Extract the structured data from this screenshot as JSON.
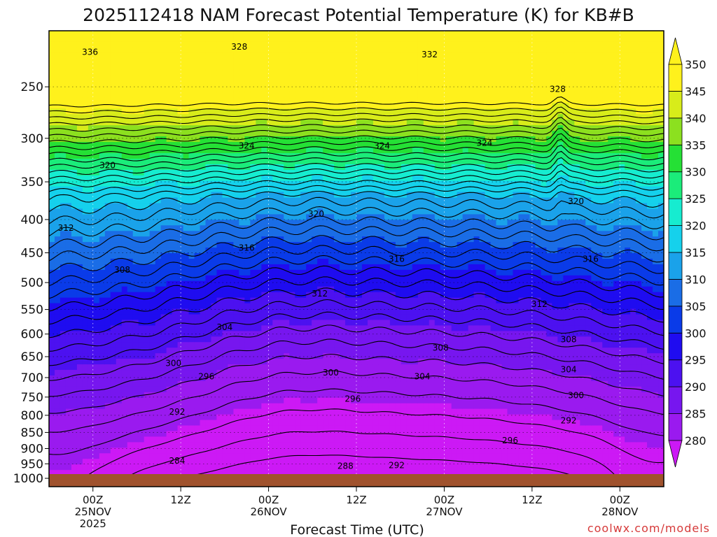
{
  "chart_data": {
    "type": "heatmap",
    "title": "2025112418 NAM Forecast Potential Temperature (K) for KB#B",
    "xlabel": "Forecast Time (UTC)",
    "watermark": "coolwx.com/models",
    "x_ticks": [
      {
        "hour": 6,
        "label": "00Z",
        "sub": [
          "25NOV",
          "2025"
        ]
      },
      {
        "hour": 18,
        "label": "12Z",
        "sub": []
      },
      {
        "hour": 30,
        "label": "00Z",
        "sub": [
          "26NOV"
        ]
      },
      {
        "hour": 42,
        "label": "12Z",
        "sub": []
      },
      {
        "hour": 54,
        "label": "00Z",
        "sub": [
          "27NOV"
        ]
      },
      {
        "hour": 66,
        "label": "12Z",
        "sub": []
      },
      {
        "hour": 78,
        "label": "00Z",
        "sub": [
          "28NOV"
        ]
      }
    ],
    "xlim_hours": [
      0,
      84
    ],
    "y_ticks": [
      250,
      300,
      350,
      400,
      450,
      500,
      550,
      600,
      650,
      700,
      750,
      800,
      850,
      900,
      950,
      1000
    ],
    "ylim_hpa": [
      1030,
      205
    ],
    "colorbar": {
      "levels": [
        280,
        285,
        290,
        295,
        300,
        305,
        310,
        315,
        320,
        325,
        330,
        335,
        340,
        345,
        350
      ],
      "colors": [
        "#cc19f5",
        "#9a1aef",
        "#7716ef",
        "#4c11f0",
        "#1f0cf0",
        "#0a3be8",
        "#1a6de6",
        "#1aa2ea",
        "#15d1ec",
        "#16ecd0",
        "#1bec7a",
        "#25e035",
        "#8ce01f",
        "#d8ec1a",
        "#fff11c"
      ]
    },
    "contour_interval_K": 2,
    "contour_labels": [
      {
        "v": 336,
        "h": 5.6,
        "p": 221
      },
      {
        "v": 328,
        "h": 26.0,
        "p": 217
      },
      {
        "v": 332,
        "h": 52.0,
        "p": 223
      },
      {
        "v": 328,
        "h": 69.5,
        "p": 252
      },
      {
        "v": 324,
        "h": 27.0,
        "p": 308
      },
      {
        "v": 324,
        "h": 45.5,
        "p": 308
      },
      {
        "v": 324,
        "h": 59.5,
        "p": 305
      },
      {
        "v": 320,
        "h": 8.0,
        "p": 330
      },
      {
        "v": 320,
        "h": 72.0,
        "p": 375
      },
      {
        "v": 320,
        "h": 36.5,
        "p": 392
      },
      {
        "v": 312,
        "h": 2.3,
        "p": 412
      },
      {
        "v": 316,
        "h": 27.0,
        "p": 442
      },
      {
        "v": 316,
        "h": 47.5,
        "p": 460
      },
      {
        "v": 316,
        "h": 74.0,
        "p": 460
      },
      {
        "v": 308,
        "h": 10.0,
        "p": 478
      },
      {
        "v": 312,
        "h": 37.0,
        "p": 520
      },
      {
        "v": 312,
        "h": 67.0,
        "p": 540
      },
      {
        "v": 304,
        "h": 24.0,
        "p": 586
      },
      {
        "v": 308,
        "h": 53.5,
        "p": 630
      },
      {
        "v": 308,
        "h": 71.0,
        "p": 612
      },
      {
        "v": 300,
        "h": 17.0,
        "p": 665
      },
      {
        "v": 300,
        "h": 38.5,
        "p": 688
      },
      {
        "v": 304,
        "h": 51.0,
        "p": 697
      },
      {
        "v": 304,
        "h": 71.0,
        "p": 680
      },
      {
        "v": 296,
        "h": 21.5,
        "p": 697
      },
      {
        "v": 296,
        "h": 41.5,
        "p": 755
      },
      {
        "v": 300,
        "h": 72.0,
        "p": 746
      },
      {
        "v": 292,
        "h": 17.5,
        "p": 790
      },
      {
        "v": 292,
        "h": 71.0,
        "p": 815
      },
      {
        "v": 296,
        "h": 63.0,
        "p": 875
      },
      {
        "v": 284,
        "h": 17.5,
        "p": 940
      },
      {
        "v": 288,
        "h": 40.5,
        "p": 958
      },
      {
        "v": 292,
        "h": 47.5,
        "p": 955
      }
    ],
    "terrain_color": "#a0522d",
    "grid": "dotted"
  }
}
